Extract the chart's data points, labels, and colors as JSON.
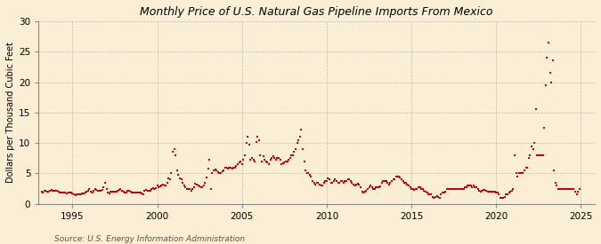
{
  "title": "Monthly Price of U.S. Natural Gas Pipeline Imports From Mexico",
  "ylabel": "Dollars per Thousand Cubic Feet",
  "source": "Source: U.S. Energy Information Administration",
  "background_color": "#faefd4",
  "dot_color": "#cc0000",
  "grid_color": "#bbbbbb",
  "xlim": [
    1993.0,
    2025.8
  ],
  "ylim": [
    0,
    30
  ],
  "yticks": [
    0,
    5,
    10,
    15,
    20,
    25,
    30
  ],
  "xticks": [
    1995,
    2000,
    2005,
    2010,
    2015,
    2020,
    2025
  ],
  "data": [
    [
      1993.17,
      2.0
    ],
    [
      1993.25,
      1.9
    ],
    [
      1993.33,
      2.1
    ],
    [
      1993.42,
      2.1
    ],
    [
      1993.5,
      2.0
    ],
    [
      1993.58,
      2.0
    ],
    [
      1993.67,
      2.1
    ],
    [
      1993.75,
      2.3
    ],
    [
      1993.83,
      2.2
    ],
    [
      1993.92,
      2.1
    ],
    [
      1994.0,
      2.2
    ],
    [
      1994.08,
      2.1
    ],
    [
      1994.17,
      2.0
    ],
    [
      1994.25,
      1.8
    ],
    [
      1994.33,
      1.9
    ],
    [
      1994.42,
      1.9
    ],
    [
      1994.5,
      1.9
    ],
    [
      1994.58,
      1.8
    ],
    [
      1994.67,
      1.7
    ],
    [
      1994.75,
      1.8
    ],
    [
      1994.83,
      1.8
    ],
    [
      1994.92,
      1.9
    ],
    [
      1995.0,
      1.7
    ],
    [
      1995.08,
      1.6
    ],
    [
      1995.17,
      1.4
    ],
    [
      1995.25,
      1.5
    ],
    [
      1995.33,
      1.5
    ],
    [
      1995.42,
      1.6
    ],
    [
      1995.5,
      1.6
    ],
    [
      1995.58,
      1.7
    ],
    [
      1995.67,
      1.7
    ],
    [
      1995.75,
      1.8
    ],
    [
      1995.83,
      2.0
    ],
    [
      1995.92,
      2.2
    ],
    [
      1996.0,
      2.5
    ],
    [
      1996.08,
      2.0
    ],
    [
      1996.17,
      1.8
    ],
    [
      1996.25,
      2.2
    ],
    [
      1996.33,
      2.5
    ],
    [
      1996.42,
      2.3
    ],
    [
      1996.5,
      2.2
    ],
    [
      1996.58,
      2.1
    ],
    [
      1996.67,
      2.2
    ],
    [
      1996.75,
      2.3
    ],
    [
      1996.83,
      2.8
    ],
    [
      1996.92,
      3.5
    ],
    [
      1997.0,
      2.5
    ],
    [
      1997.08,
      1.8
    ],
    [
      1997.17,
      1.7
    ],
    [
      1997.25,
      2.0
    ],
    [
      1997.33,
      2.0
    ],
    [
      1997.42,
      2.0
    ],
    [
      1997.5,
      2.0
    ],
    [
      1997.58,
      2.0
    ],
    [
      1997.67,
      2.2
    ],
    [
      1997.75,
      2.3
    ],
    [
      1997.83,
      2.4
    ],
    [
      1997.92,
      2.2
    ],
    [
      1998.0,
      2.0
    ],
    [
      1998.08,
      1.8
    ],
    [
      1998.17,
      1.9
    ],
    [
      1998.25,
      2.1
    ],
    [
      1998.33,
      2.1
    ],
    [
      1998.42,
      2.0
    ],
    [
      1998.5,
      1.9
    ],
    [
      1998.58,
      1.9
    ],
    [
      1998.67,
      1.8
    ],
    [
      1998.75,
      1.9
    ],
    [
      1998.83,
      1.8
    ],
    [
      1998.92,
      1.8
    ],
    [
      1999.0,
      1.8
    ],
    [
      1999.08,
      1.7
    ],
    [
      1999.17,
      1.6
    ],
    [
      1999.25,
      2.1
    ],
    [
      1999.33,
      2.3
    ],
    [
      1999.42,
      2.2
    ],
    [
      1999.5,
      2.2
    ],
    [
      1999.58,
      2.2
    ],
    [
      1999.67,
      2.4
    ],
    [
      1999.75,
      2.6
    ],
    [
      1999.83,
      2.5
    ],
    [
      1999.92,
      2.6
    ],
    [
      2000.0,
      3.0
    ],
    [
      2000.08,
      2.8
    ],
    [
      2000.17,
      2.9
    ],
    [
      2000.25,
      3.1
    ],
    [
      2000.33,
      3.2
    ],
    [
      2000.42,
      3.0
    ],
    [
      2000.5,
      3.1
    ],
    [
      2000.58,
      3.5
    ],
    [
      2000.67,
      4.2
    ],
    [
      2000.75,
      4.0
    ],
    [
      2000.83,
      5.0
    ],
    [
      2000.92,
      8.5
    ],
    [
      2001.0,
      9.0
    ],
    [
      2001.08,
      8.0
    ],
    [
      2001.17,
      5.5
    ],
    [
      2001.25,
      4.8
    ],
    [
      2001.33,
      4.2
    ],
    [
      2001.42,
      4.0
    ],
    [
      2001.5,
      3.5
    ],
    [
      2001.58,
      3.0
    ],
    [
      2001.67,
      2.8
    ],
    [
      2001.75,
      2.5
    ],
    [
      2001.83,
      2.5
    ],
    [
      2001.92,
      2.5
    ],
    [
      2002.0,
      2.2
    ],
    [
      2002.08,
      2.4
    ],
    [
      2002.17,
      2.8
    ],
    [
      2002.25,
      3.3
    ],
    [
      2002.33,
      3.2
    ],
    [
      2002.42,
      3.0
    ],
    [
      2002.5,
      2.9
    ],
    [
      2002.58,
      2.8
    ],
    [
      2002.67,
      2.8
    ],
    [
      2002.75,
      3.0
    ],
    [
      2002.83,
      3.5
    ],
    [
      2002.92,
      4.3
    ],
    [
      2003.0,
      5.8
    ],
    [
      2003.08,
      7.2
    ],
    [
      2003.17,
      2.4
    ],
    [
      2003.25,
      5.0
    ],
    [
      2003.33,
      5.5
    ],
    [
      2003.42,
      5.6
    ],
    [
      2003.5,
      5.5
    ],
    [
      2003.58,
      5.2
    ],
    [
      2003.67,
      5.0
    ],
    [
      2003.75,
      5.0
    ],
    [
      2003.83,
      5.3
    ],
    [
      2003.92,
      5.5
    ],
    [
      2004.0,
      6.0
    ],
    [
      2004.08,
      5.9
    ],
    [
      2004.17,
      5.8
    ],
    [
      2004.25,
      5.9
    ],
    [
      2004.33,
      6.0
    ],
    [
      2004.42,
      5.8
    ],
    [
      2004.5,
      5.9
    ],
    [
      2004.58,
      6.0
    ],
    [
      2004.67,
      6.2
    ],
    [
      2004.75,
      6.5
    ],
    [
      2004.83,
      6.8
    ],
    [
      2004.92,
      7.0
    ],
    [
      2005.0,
      6.5
    ],
    [
      2005.08,
      7.2
    ],
    [
      2005.17,
      8.0
    ],
    [
      2005.25,
      10.0
    ],
    [
      2005.33,
      11.0
    ],
    [
      2005.42,
      9.8
    ],
    [
      2005.5,
      7.2
    ],
    [
      2005.58,
      7.5
    ],
    [
      2005.67,
      7.2
    ],
    [
      2005.75,
      7.0
    ],
    [
      2005.83,
      10.2
    ],
    [
      2005.92,
      11.0
    ],
    [
      2006.0,
      10.5
    ],
    [
      2006.08,
      8.0
    ],
    [
      2006.17,
      7.0
    ],
    [
      2006.25,
      7.8
    ],
    [
      2006.33,
      7.3
    ],
    [
      2006.42,
      7.0
    ],
    [
      2006.5,
      6.8
    ],
    [
      2006.58,
      6.5
    ],
    [
      2006.67,
      7.2
    ],
    [
      2006.75,
      7.5
    ],
    [
      2006.83,
      7.8
    ],
    [
      2006.92,
      7.5
    ],
    [
      2007.0,
      7.2
    ],
    [
      2007.08,
      7.5
    ],
    [
      2007.17,
      7.5
    ],
    [
      2007.25,
      7.3
    ],
    [
      2007.33,
      6.5
    ],
    [
      2007.42,
      6.7
    ],
    [
      2007.5,
      6.8
    ],
    [
      2007.58,
      7.0
    ],
    [
      2007.67,
      6.9
    ],
    [
      2007.75,
      7.2
    ],
    [
      2007.83,
      7.5
    ],
    [
      2007.92,
      8.0
    ],
    [
      2008.0,
      8.0
    ],
    [
      2008.08,
      8.5
    ],
    [
      2008.17,
      9.0
    ],
    [
      2008.25,
      10.0
    ],
    [
      2008.33,
      10.5
    ],
    [
      2008.42,
      11.0
    ],
    [
      2008.5,
      12.2
    ],
    [
      2008.58,
      9.0
    ],
    [
      2008.67,
      7.0
    ],
    [
      2008.75,
      5.5
    ],
    [
      2008.83,
      5.0
    ],
    [
      2008.92,
      5.0
    ],
    [
      2009.0,
      4.8
    ],
    [
      2009.08,
      4.5
    ],
    [
      2009.17,
      3.8
    ],
    [
      2009.25,
      3.5
    ],
    [
      2009.33,
      3.2
    ],
    [
      2009.42,
      3.5
    ],
    [
      2009.5,
      3.5
    ],
    [
      2009.58,
      3.2
    ],
    [
      2009.67,
      3.0
    ],
    [
      2009.75,
      3.0
    ],
    [
      2009.83,
      3.5
    ],
    [
      2009.92,
      3.8
    ],
    [
      2010.0,
      3.8
    ],
    [
      2010.08,
      4.2
    ],
    [
      2010.17,
      4.0
    ],
    [
      2010.25,
      3.5
    ],
    [
      2010.33,
      3.5
    ],
    [
      2010.42,
      3.8
    ],
    [
      2010.5,
      4.0
    ],
    [
      2010.58,
      3.8
    ],
    [
      2010.67,
      3.5
    ],
    [
      2010.75,
      3.5
    ],
    [
      2010.83,
      3.7
    ],
    [
      2010.92,
      3.8
    ],
    [
      2011.0,
      3.5
    ],
    [
      2011.08,
      3.8
    ],
    [
      2011.17,
      3.8
    ],
    [
      2011.25,
      4.0
    ],
    [
      2011.33,
      4.0
    ],
    [
      2011.42,
      3.8
    ],
    [
      2011.5,
      3.5
    ],
    [
      2011.58,
      3.2
    ],
    [
      2011.67,
      3.0
    ],
    [
      2011.75,
      3.2
    ],
    [
      2011.83,
      3.3
    ],
    [
      2011.92,
      3.2
    ],
    [
      2012.0,
      2.8
    ],
    [
      2012.08,
      2.0
    ],
    [
      2012.17,
      1.8
    ],
    [
      2012.25,
      2.0
    ],
    [
      2012.33,
      2.1
    ],
    [
      2012.42,
      2.5
    ],
    [
      2012.5,
      2.8
    ],
    [
      2012.58,
      3.0
    ],
    [
      2012.67,
      2.8
    ],
    [
      2012.75,
      2.5
    ],
    [
      2012.83,
      2.5
    ],
    [
      2012.92,
      2.8
    ],
    [
      2013.0,
      2.8
    ],
    [
      2013.08,
      2.8
    ],
    [
      2013.17,
      2.9
    ],
    [
      2013.25,
      3.5
    ],
    [
      2013.33,
      3.8
    ],
    [
      2013.42,
      3.8
    ],
    [
      2013.5,
      3.8
    ],
    [
      2013.58,
      3.5
    ],
    [
      2013.67,
      3.2
    ],
    [
      2013.75,
      3.5
    ],
    [
      2013.83,
      3.8
    ],
    [
      2013.92,
      4.0
    ],
    [
      2014.0,
      4.0
    ],
    [
      2014.08,
      4.5
    ],
    [
      2014.17,
      4.5
    ],
    [
      2014.25,
      4.5
    ],
    [
      2014.33,
      4.3
    ],
    [
      2014.42,
      4.0
    ],
    [
      2014.5,
      3.8
    ],
    [
      2014.58,
      3.5
    ],
    [
      2014.67,
      3.5
    ],
    [
      2014.75,
      3.2
    ],
    [
      2014.83,
      3.0
    ],
    [
      2014.92,
      2.8
    ],
    [
      2015.0,
      2.5
    ],
    [
      2015.08,
      2.5
    ],
    [
      2015.17,
      2.3
    ],
    [
      2015.25,
      2.5
    ],
    [
      2015.33,
      2.5
    ],
    [
      2015.42,
      2.8
    ],
    [
      2015.5,
      2.8
    ],
    [
      2015.58,
      2.5
    ],
    [
      2015.67,
      2.5
    ],
    [
      2015.75,
      2.2
    ],
    [
      2015.83,
      2.0
    ],
    [
      2015.92,
      1.8
    ],
    [
      2016.0,
      1.5
    ],
    [
      2016.08,
      1.5
    ],
    [
      2016.17,
      1.5
    ],
    [
      2016.25,
      1.2
    ],
    [
      2016.33,
      1.0
    ],
    [
      2016.42,
      1.2
    ],
    [
      2016.5,
      1.3
    ],
    [
      2016.58,
      1.2
    ],
    [
      2016.67,
      1.0
    ],
    [
      2016.75,
      1.5
    ],
    [
      2016.83,
      1.8
    ],
    [
      2016.92,
      1.8
    ],
    [
      2017.0,
      2.0
    ],
    [
      2017.08,
      2.5
    ],
    [
      2017.17,
      2.5
    ],
    [
      2017.25,
      2.5
    ],
    [
      2017.33,
      2.5
    ],
    [
      2017.42,
      2.5
    ],
    [
      2017.5,
      2.5
    ],
    [
      2017.58,
      2.5
    ],
    [
      2017.67,
      2.5
    ],
    [
      2017.75,
      2.5
    ],
    [
      2017.83,
      2.5
    ],
    [
      2017.92,
      2.5
    ],
    [
      2018.0,
      2.5
    ],
    [
      2018.08,
      2.5
    ],
    [
      2018.17,
      2.8
    ],
    [
      2018.25,
      2.8
    ],
    [
      2018.33,
      3.0
    ],
    [
      2018.42,
      3.0
    ],
    [
      2018.5,
      3.0
    ],
    [
      2018.58,
      2.8
    ],
    [
      2018.67,
      3.0
    ],
    [
      2018.75,
      2.8
    ],
    [
      2018.83,
      2.8
    ],
    [
      2018.92,
      2.5
    ],
    [
      2019.0,
      2.2
    ],
    [
      2019.08,
      2.0
    ],
    [
      2019.17,
      2.2
    ],
    [
      2019.25,
      2.3
    ],
    [
      2019.33,
      2.3
    ],
    [
      2019.42,
      2.2
    ],
    [
      2019.5,
      2.0
    ],
    [
      2019.58,
      2.0
    ],
    [
      2019.67,
      2.0
    ],
    [
      2019.75,
      2.0
    ],
    [
      2019.83,
      2.0
    ],
    [
      2019.92,
      2.0
    ],
    [
      2020.0,
      1.8
    ],
    [
      2020.08,
      1.8
    ],
    [
      2020.17,
      1.5
    ],
    [
      2020.25,
      1.0
    ],
    [
      2020.33,
      1.0
    ],
    [
      2020.42,
      1.0
    ],
    [
      2020.5,
      1.2
    ],
    [
      2020.58,
      1.5
    ],
    [
      2020.67,
      1.5
    ],
    [
      2020.75,
      1.8
    ],
    [
      2020.83,
      2.0
    ],
    [
      2020.92,
      2.2
    ],
    [
      2021.0,
      2.5
    ],
    [
      2021.08,
      8.0
    ],
    [
      2021.17,
      5.0
    ],
    [
      2021.25,
      4.5
    ],
    [
      2021.33,
      5.0
    ],
    [
      2021.42,
      5.0
    ],
    [
      2021.5,
      5.0
    ],
    [
      2021.58,
      5.0
    ],
    [
      2021.67,
      5.5
    ],
    [
      2021.75,
      6.0
    ],
    [
      2021.83,
      6.0
    ],
    [
      2021.92,
      7.5
    ],
    [
      2022.0,
      8.0
    ],
    [
      2022.08,
      9.5
    ],
    [
      2022.17,
      9.0
    ],
    [
      2022.25,
      10.0
    ],
    [
      2022.33,
      15.5
    ],
    [
      2022.42,
      8.0
    ],
    [
      2022.5,
      8.0
    ],
    [
      2022.58,
      8.0
    ],
    [
      2022.67,
      8.0
    ],
    [
      2022.75,
      8.0
    ],
    [
      2022.83,
      12.5
    ],
    [
      2022.92,
      19.5
    ],
    [
      2023.0,
      24.0
    ],
    [
      2023.08,
      26.5
    ],
    [
      2023.17,
      21.5
    ],
    [
      2023.25,
      20.0
    ],
    [
      2023.33,
      23.5
    ],
    [
      2023.42,
      5.5
    ],
    [
      2023.5,
      3.5
    ],
    [
      2023.58,
      3.0
    ],
    [
      2023.67,
      2.5
    ],
    [
      2023.75,
      2.5
    ],
    [
      2023.83,
      2.5
    ],
    [
      2023.92,
      2.5
    ],
    [
      2024.0,
      2.5
    ],
    [
      2024.08,
      2.5
    ],
    [
      2024.17,
      2.5
    ],
    [
      2024.25,
      2.5
    ],
    [
      2024.33,
      2.5
    ],
    [
      2024.42,
      2.5
    ],
    [
      2024.5,
      2.5
    ],
    [
      2024.58,
      2.5
    ],
    [
      2024.67,
      2.0
    ],
    [
      2024.75,
      1.5
    ],
    [
      2024.83,
      2.0
    ],
    [
      2024.92,
      2.5
    ]
  ]
}
